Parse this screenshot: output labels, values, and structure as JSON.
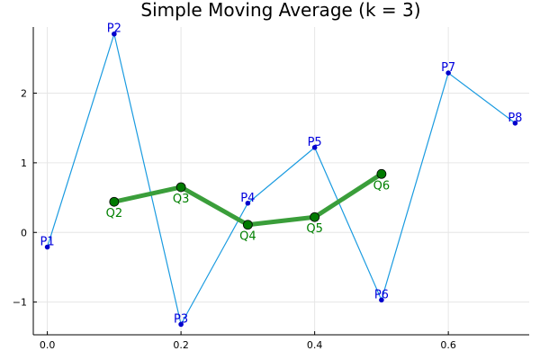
{
  "chart_data": {
    "type": "line",
    "title": "Simple Moving Average (k = 3)",
    "xlabel": "",
    "ylabel": "",
    "xlim": [
      -0.021,
      0.721
    ],
    "ylim": [
      -1.47,
      2.95
    ],
    "xticks": [
      0.0,
      0.2,
      0.4,
      0.6
    ],
    "xtick_labels": [
      "0.0",
      "0.2",
      "0.4",
      "0.6"
    ],
    "yticks": [
      -1,
      0,
      1,
      2
    ],
    "ytick_labels": [
      "−1",
      "0",
      "1",
      "2"
    ],
    "grid": true,
    "legend": "none",
    "series": [
      {
        "color": "#1a9be0",
        "marker_color": "#0000cc",
        "x": [
          0.0,
          0.1,
          0.2,
          0.3,
          0.4,
          0.5,
          0.6,
          0.7
        ],
        "y": [
          -0.21,
          2.85,
          -1.32,
          0.42,
          1.22,
          -0.97,
          2.29,
          1.57
        ],
        "labels": [
          "P1",
          "P2",
          "P3",
          "P4",
          "P5",
          "P6",
          "P7",
          "P8"
        ]
      },
      {
        "color": "#3a9e3a",
        "marker_color": "#007a00",
        "x": [
          0.1,
          0.2,
          0.3,
          0.4,
          0.5
        ],
        "y": [
          0.44,
          0.65,
          0.11,
          0.22,
          0.84
        ],
        "labels": [
          "Q2",
          "Q3",
          "Q4",
          "Q5",
          "Q6"
        ]
      }
    ]
  }
}
